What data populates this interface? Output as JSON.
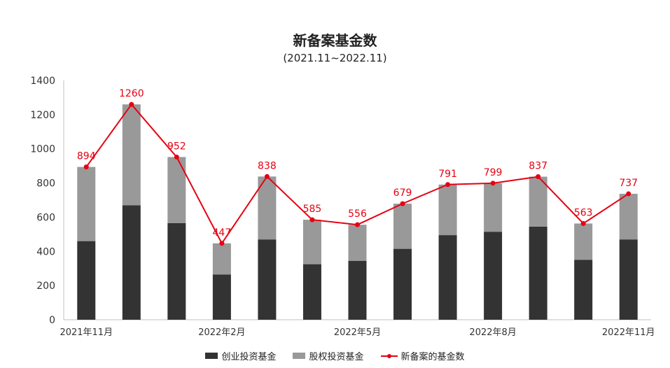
{
  "chart_data": {
    "type": "bar",
    "title": "新备案基金数",
    "subtitle": "(2021.11~2022.11)",
    "categories": [
      "2021年11月",
      "",
      "",
      "2022年2月",
      "",
      "",
      "2022年5月",
      "",
      "",
      "2022年8月",
      "",
      "",
      "2022年11月"
    ],
    "stacked": true,
    "series": [
      {
        "name": "创业投资基金",
        "type": "bar",
        "color": "#333333",
        "values": [
          460,
          670,
          565,
          265,
          470,
          325,
          345,
          415,
          495,
          515,
          545,
          350,
          470
        ]
      },
      {
        "name": "股权投资基金",
        "type": "bar",
        "color": "#999999",
        "values": [
          434,
          590,
          387,
          182,
          368,
          260,
          211,
          264,
          296,
          284,
          292,
          213,
          267
        ]
      },
      {
        "name": "新备案的基金数",
        "type": "line",
        "color": "#e60012",
        "values": [
          894,
          1260,
          952,
          447,
          838,
          585,
          556,
          679,
          791,
          799,
          837,
          563,
          737
        ]
      }
    ],
    "ylim": [
      0,
      1400
    ],
    "yticks": [
      0,
      200,
      400,
      600,
      800,
      1000,
      1200,
      1400
    ],
    "grid": false,
    "legend_position": "bottom"
  }
}
